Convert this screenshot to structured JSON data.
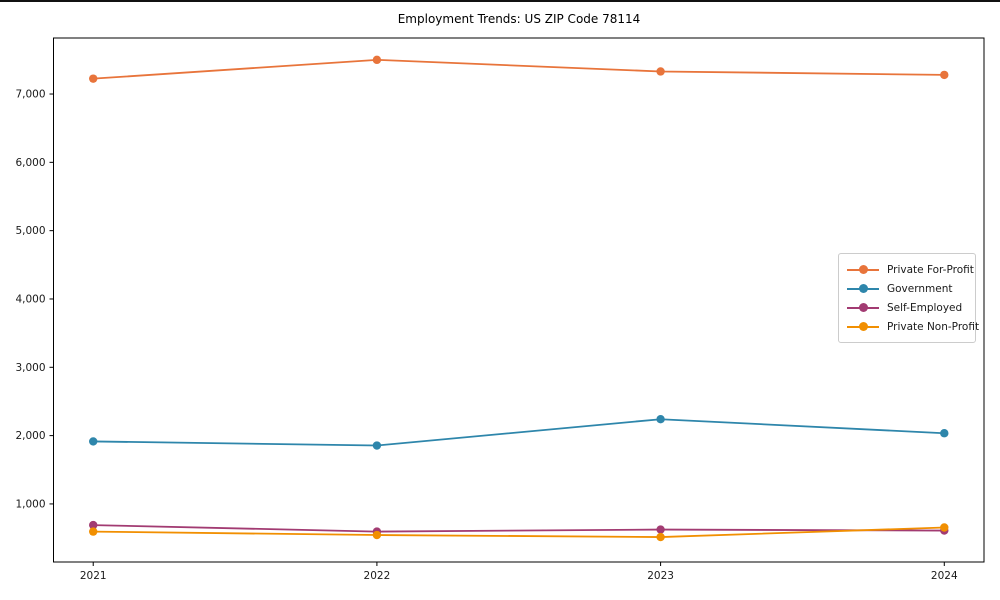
{
  "title": "Employment Trends: US ZIP Code 78114",
  "chart_data": {
    "type": "line",
    "title": "Employment Trends: US ZIP Code 78114",
    "xlabel": "",
    "ylabel": "",
    "x": [
      2021,
      2022,
      2023,
      2024
    ],
    "xtick_labels": [
      "2021",
      "2022",
      "2023",
      "2024"
    ],
    "yticks": [
      1000,
      2000,
      3000,
      4000,
      5000,
      6000,
      7000
    ],
    "ytick_labels": [
      "1,000",
      "2,000",
      "3,000",
      "4,000",
      "5,000",
      "6,000",
      "7,000"
    ],
    "xlim": [
      2020.86,
      2024.14
    ],
    "ylim": [
      150,
      7820
    ],
    "grid": false,
    "legend_position": "center right",
    "series": [
      {
        "name": "Private For-Profit",
        "color": "#E8743B",
        "values": [
          7225,
          7500,
          7330,
          7280
        ]
      },
      {
        "name": "Government",
        "color": "#2E86AB",
        "values": [
          1915,
          1855,
          2240,
          2035
        ]
      },
      {
        "name": "Self-Employed",
        "color": "#A23B72",
        "values": [
          690,
          595,
          625,
          610
        ]
      },
      {
        "name": "Private Non-Profit",
        "color": "#F18F01",
        "values": [
          595,
          545,
          515,
          655
        ]
      }
    ]
  },
  "style_colors": {
    "spine": "#000000",
    "tick": "#000000",
    "tick_label": "#1a1a1a",
    "background": "#ffffff",
    "legend_border": "#cccccc"
  }
}
